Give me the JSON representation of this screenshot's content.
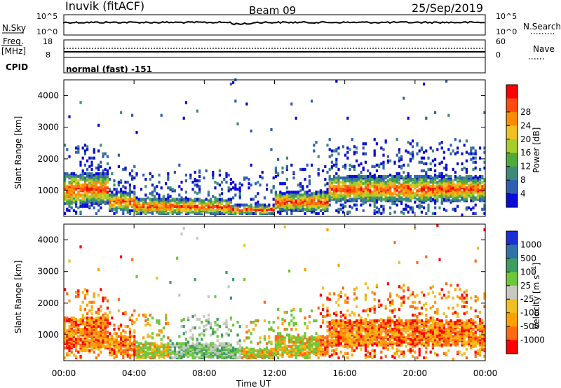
{
  "header": {
    "station": "Inuvik (fitACF)",
    "beam": "Beam 09",
    "date": "25/Sep/2019"
  },
  "nsky_panel": {
    "left_label": "N.Sky",
    "right_label": "N.Search",
    "tick_top": "10^5",
    "tick_bottom": "10^0",
    "right_tick_top": "10^5",
    "right_tick_bottom": "10^0"
  },
  "freq_panel": {
    "left_label_1": "Freq.",
    "left_label_2": "[MHz]",
    "right_label": "Nave",
    "tick_top": "18",
    "tick_bottom": "8",
    "right_tick_top": "60",
    "right_tick_bottom": "0"
  },
  "cpid": {
    "label": "CPID",
    "value": "normal (fast) -151"
  },
  "chart_data": [
    {
      "type": "heatmap",
      "name": "power",
      "ylabel": "Slant Range [km]",
      "y_ticks": [
        "1000",
        "2000",
        "3000",
        "4000"
      ],
      "ylim": [
        180,
        4500
      ],
      "xlim_hours": [
        0,
        24
      ],
      "colorbar": {
        "title": "Power [dB]",
        "ticks": [
          "4",
          "8",
          "12",
          "16",
          "20",
          "24",
          "28"
        ],
        "range": [
          0,
          30
        ],
        "colors": [
          "#0b0bd6",
          "#2f5fb0",
          "#3e8a78",
          "#4faa3a",
          "#a8cc2a",
          "#f0c020",
          "#ff8c00",
          "#ff4a10",
          "#ff0000"
        ]
      }
    },
    {
      "type": "heatmap",
      "name": "velocity",
      "ylabel": "Slant Range [km]",
      "y_ticks": [
        "1000",
        "2000",
        "3000",
        "4000"
      ],
      "ylim": [
        180,
        4500
      ],
      "xlim_hours": [
        0,
        24
      ],
      "colorbar": {
        "title": "Velocity [m s^-1]",
        "ticks": [
          "1000",
          "500",
          "100",
          "25",
          "-25",
          "-100",
          "-500",
          "-1000"
        ],
        "colors": [
          "#1a2ed4",
          "#2f72a8",
          "#3c9c62",
          "#6bc83a",
          "#c8c8c0",
          "#f0c020",
          "#ffa000",
          "#ff6a10",
          "#ff0000"
        ]
      }
    }
  ],
  "x_axis": {
    "ticks": [
      "00:00",
      "04:00",
      "08:00",
      "12:00",
      "16:00",
      "20:00",
      "00:00"
    ],
    "label": "Time UT"
  }
}
